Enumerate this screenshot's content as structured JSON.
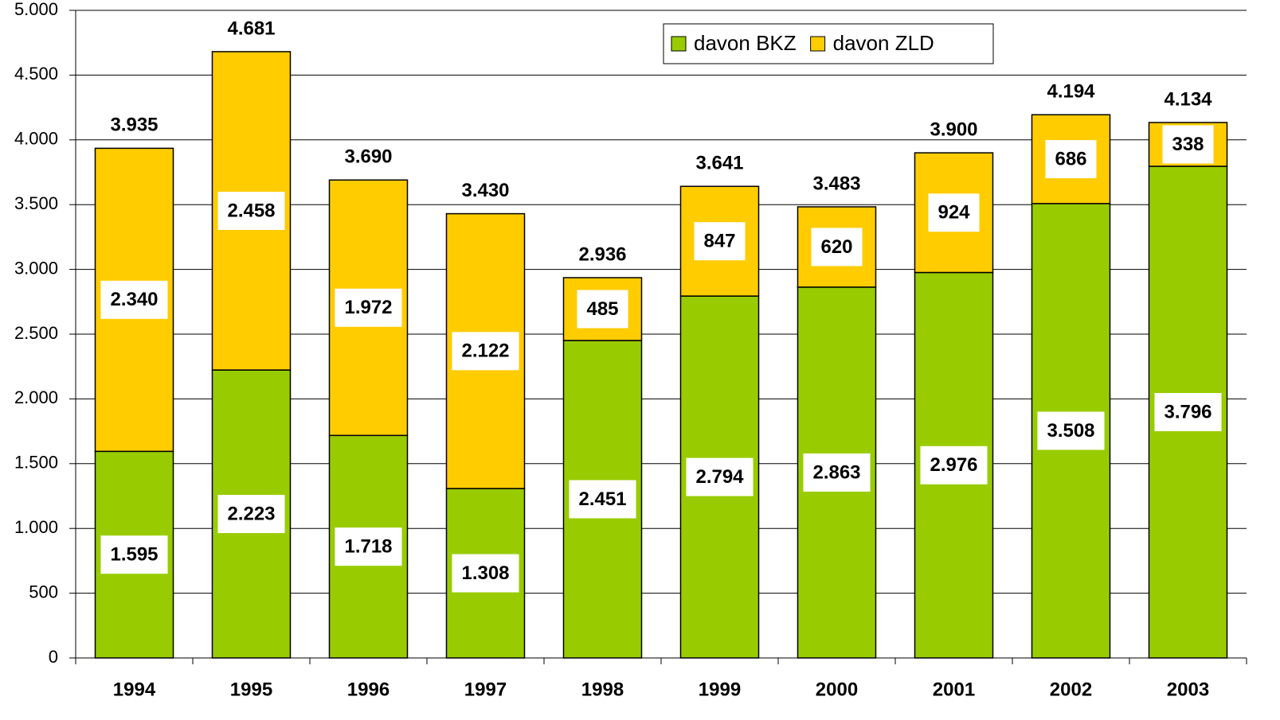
{
  "chart_data": {
    "type": "stacked_bar",
    "categories": [
      "1994",
      "1995",
      "1996",
      "1997",
      "1998",
      "1999",
      "2000",
      "2001",
      "2002",
      "2003"
    ],
    "series": [
      {
        "name": "davon BKZ",
        "color": "#99cc00",
        "values": [
          1595,
          2223,
          1718,
          1308,
          2451,
          2794,
          2863,
          2976,
          3508,
          3796
        ],
        "value_labels": [
          "1.595",
          "2.223",
          "1.718",
          "1.308",
          "2.451",
          "2.794",
          "2.863",
          "2.976",
          "3.508",
          "3.796"
        ]
      },
      {
        "name": "davon ZLD",
        "color": "#ffcc00",
        "values": [
          2340,
          2458,
          1972,
          2122,
          485,
          847,
          620,
          924,
          686,
          338
        ],
        "value_labels": [
          "2.340",
          "2.458",
          "1.972",
          "2.122",
          "485",
          "847",
          "620",
          "924",
          "686",
          "338"
        ]
      }
    ],
    "totals": {
      "values": [
        3935,
        4681,
        3690,
        3430,
        2936,
        3641,
        3483,
        3900,
        4194,
        4134
      ],
      "value_labels": [
        "3.935",
        "4.681",
        "3.690",
        "3.430",
        "2.936",
        "3.641",
        "3.483",
        "3.900",
        "4.194",
        "4.134"
      ]
    },
    "ylim": [
      0,
      5000
    ],
    "yticks": [
      0,
      500,
      {
        "value": 1000,
        "label": "1.000"
      },
      {
        "value": 1500,
        "label": "1.500"
      },
      {
        "value": 2000,
        "label": "2.000"
      },
      {
        "value": 2500,
        "label": "2.500"
      },
      {
        "value": 3000,
        "label": "3.000"
      },
      {
        "value": 3500,
        "label": "3.500"
      },
      {
        "value": 4000,
        "label": "4.000"
      },
      {
        "value": 4500,
        "label": "4.500"
      },
      {
        "value": 5000,
        "label": "5.000"
      }
    ],
    "grid": true,
    "legend": "top-right"
  }
}
